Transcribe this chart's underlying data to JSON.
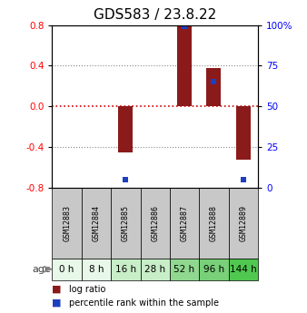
{
  "title": "GDS583 / 23.8.22",
  "samples": [
    "GSM12883",
    "GSM12884",
    "GSM12885",
    "GSM12886",
    "GSM12887",
    "GSM12888",
    "GSM12889"
  ],
  "ages": [
    "0 h",
    "8 h",
    "16 h",
    "28 h",
    "52 h",
    "96 h",
    "144 h"
  ],
  "log_ratios": [
    0.0,
    0.0,
    -0.45,
    0.0,
    0.79,
    0.38,
    -0.52
  ],
  "percentile_ranks_raw": [
    null,
    null,
    5,
    null,
    99,
    65,
    5
  ],
  "ylim": [
    -0.8,
    0.8
  ],
  "left_yticks": [
    -0.8,
    -0.4,
    0.0,
    0.4,
    0.8
  ],
  "right_ytick_labels": [
    "0",
    "25",
    "50",
    "75",
    "100%"
  ],
  "bar_color": "#8B1A1A",
  "dot_color": "#1E3FBF",
  "zero_line_color": "#CC0000",
  "dotted_color": "#888888",
  "age_colors": [
    "#e8f8e8",
    "#e8f8e8",
    "#c8eec8",
    "#c8eec8",
    "#90d890",
    "#78d078",
    "#50c850"
  ],
  "gsm_bg_color": "#c8c8c8",
  "title_fontsize": 11,
  "bar_width": 0.5,
  "age_label": "age",
  "legend_log_ratio": "log ratio",
  "legend_percentile": "percentile rank within the sample"
}
